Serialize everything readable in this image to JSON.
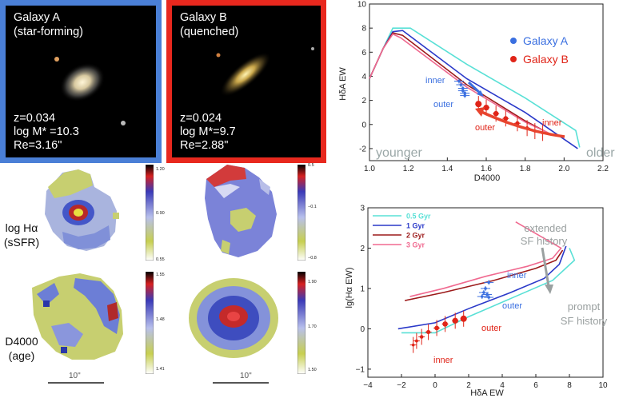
{
  "galaxy_a": {
    "title_line1": "Galaxy A",
    "title_line2": "(star-forming)",
    "z": "z=0.034",
    "mass": "log M* =10.3",
    "re": "Re=3.16\"",
    "frame_color": "#4a7fd6"
  },
  "galaxy_b": {
    "title_line1": "Galaxy B",
    "title_line2": "(quenched)",
    "z": "z=0.024",
    "mass": "log M*=9.7",
    "re": "Re=2.88\"",
    "frame_color": "#e8281e"
  },
  "maps": {
    "row1_label_line1": "log Hα",
    "row1_label_line2": "(sSFR)",
    "row2_label_line1": "D4000",
    "row2_label_line2": "(age)",
    "a_ha_ticks": [
      "1.20",
      "0.90",
      "0.55"
    ],
    "b_ha_ticks": [
      "0.5",
      "−0.1",
      "−0.8"
    ],
    "a_d4_ticks": [
      "1.55",
      "1.48",
      "1.41"
    ],
    "b_d4_ticks": [
      "1.90",
      "1.70",
      "1.50"
    ],
    "scale_label": "10\""
  },
  "chart_data": [
    {
      "type": "line",
      "title": "",
      "xlabel": "D4000",
      "ylabel": "HδA EW",
      "xlim": [
        1.0,
        2.2
      ],
      "ylim": [
        -3,
        10
      ],
      "xticks": [
        "1.0",
        "1.2",
        "1.4",
        "1.6",
        "1.8",
        "2.0",
        "2.2"
      ],
      "yticks": [
        "-2",
        "0",
        "2",
        "4",
        "6",
        "8",
        "10"
      ],
      "legend": [
        {
          "name": "Galaxy A",
          "color": "#3a6fe0"
        },
        {
          "name": "Galaxy B",
          "color": "#e02418"
        }
      ],
      "tracks": [
        {
          "name": "track-0.5gyr",
          "color": "#59e0d6",
          "x": [
            1.0,
            1.07,
            1.12,
            1.21,
            1.5,
            1.8,
            2.06,
            2.08
          ],
          "y": [
            3.8,
            6.3,
            8.0,
            8.0,
            5.0,
            2.2,
            -0.5,
            -1.9
          ]
        },
        {
          "name": "track-1gyr",
          "color": "#2a39c9",
          "x": [
            1.0,
            1.07,
            1.12,
            1.17,
            1.5,
            1.8,
            2.07
          ],
          "y": [
            3.8,
            6.3,
            7.7,
            7.8,
            3.8,
            1.0,
            -2.0
          ]
        },
        {
          "name": "track-2gyr",
          "color": "#9c1a1a",
          "x": [
            1.0,
            1.07,
            1.12,
            1.17,
            1.5,
            1.8,
            1.93
          ],
          "y": [
            3.8,
            6.3,
            7.6,
            7.4,
            3.3,
            0.3,
            -0.8
          ]
        },
        {
          "name": "track-3gyr",
          "color": "#f06a90",
          "x": [
            1.0,
            1.07,
            1.12,
            1.16,
            1.5,
            1.8,
            1.92
          ],
          "y": [
            3.8,
            6.3,
            7.5,
            7.2,
            3.1,
            0.2,
            -0.7
          ]
        }
      ],
      "points_a": [
        {
          "x": 1.46,
          "y": 3.6
        },
        {
          "x": 1.47,
          "y": 3.3
        },
        {
          "x": 1.48,
          "y": 3.0
        },
        {
          "x": 1.48,
          "y": 2.8
        },
        {
          "x": 1.49,
          "y": 2.6
        },
        {
          "x": 1.49,
          "y": 2.4
        }
      ],
      "points_b": [
        {
          "x": 1.56,
          "y": 1.7
        },
        {
          "x": 1.6,
          "y": 1.4
        },
        {
          "x": 1.65,
          "y": 0.9
        },
        {
          "x": 1.7,
          "y": 0.5
        },
        {
          "x": 1.76,
          "y": 0.1
        },
        {
          "x": 1.81,
          "y": -0.3
        },
        {
          "x": 1.85,
          "y": -0.55
        },
        {
          "x": 1.89,
          "y": -0.7
        }
      ],
      "annotations": {
        "inner_a": "inner",
        "outer_a": "outer",
        "outer_b": "outer",
        "inner_b": "inner",
        "younger": "younger",
        "older": "older"
      }
    },
    {
      "type": "line",
      "title": "",
      "xlabel": "HδA EW",
      "ylabel": "lg(Hα EW)",
      "xlim": [
        -4,
        10
      ],
      "ylim": [
        -1.2,
        3
      ],
      "xticks": [
        "−4",
        "−2",
        "0",
        "2",
        "4",
        "6",
        "8",
        "10"
      ],
      "yticks": [
        "−1",
        "0",
        "1",
        "2",
        "3"
      ],
      "legend": [
        {
          "name": "0.5 Gyr",
          "color": "#59e0d6"
        },
        {
          "name": "1 Gyr",
          "color": "#2a39c9"
        },
        {
          "name": "2 Gyr",
          "color": "#9c1a1a"
        },
        {
          "name": "3 Gyr",
          "color": "#f06a90"
        }
      ],
      "tracks": [
        {
          "name": "track-0.5gyr",
          "color": "#59e0d6",
          "x": [
            8.0,
            8.3,
            7.0,
            4.5,
            2.0,
            0.0,
            -2.0
          ],
          "y": [
            2.0,
            1.7,
            1.2,
            0.75,
            0.3,
            -0.1,
            -0.1
          ]
        },
        {
          "name": "track-1gyr",
          "color": "#2a39c9",
          "x": [
            7.8,
            7.4,
            6.5,
            4.5,
            2.0,
            0.0,
            -2.2
          ],
          "y": [
            2.05,
            1.6,
            1.25,
            0.9,
            0.5,
            0.15,
            0.0
          ]
        },
        {
          "name": "track-2gyr",
          "color": "#9c1a1a",
          "x": [
            7.6,
            7.2,
            6.0,
            3.5,
            0.5,
            -1.8
          ],
          "y": [
            1.95,
            1.7,
            1.5,
            1.2,
            0.9,
            0.7
          ]
        },
        {
          "name": "track-3gyr",
          "color": "#f06a90",
          "x": [
            4.8,
            7.5,
            7.0,
            5.5,
            3.0,
            0.5,
            -1.5
          ],
          "y": [
            2.65,
            2.0,
            1.75,
            1.55,
            1.3,
            1.0,
            0.8
          ]
        }
      ],
      "points_a": [
        {
          "x": 3.2,
          "y": 1.15
        },
        {
          "x": 3.0,
          "y": 1.0
        },
        {
          "x": 2.9,
          "y": 0.9
        },
        {
          "x": 3.1,
          "y": 0.85
        },
        {
          "x": 2.8,
          "y": 0.8
        },
        {
          "x": 3.2,
          "y": 0.78
        }
      ],
      "points_b": [
        {
          "x": 1.7,
          "y": 0.25
        },
        {
          "x": 1.2,
          "y": 0.2
        },
        {
          "x": 0.6,
          "y": 0.12
        },
        {
          "x": 0.1,
          "y": 0.02
        },
        {
          "x": -0.4,
          "y": -0.08
        },
        {
          "x": -0.8,
          "y": -0.2
        },
        {
          "x": -1.1,
          "y": -0.3
        },
        {
          "x": -1.3,
          "y": -0.4
        }
      ],
      "annotations": {
        "inner_a": "inner",
        "outer_a": "outer",
        "outer_b": "outer",
        "inner_b": "inner",
        "extended_1": "extended",
        "extended_2": "SF history",
        "prompt_1": "prompt",
        "prompt_2": "SF history"
      }
    }
  ]
}
